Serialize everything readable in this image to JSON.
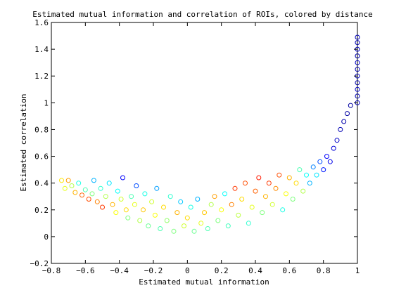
{
  "chart_data": {
    "type": "scatter",
    "title": "Estimated mutual information and correlation of ROIs, colored by distance",
    "xlabel": "Estimated mutual information",
    "ylabel": "Estimated correlation",
    "xlim": [
      -0.8,
      1.0
    ],
    "ylim": [
      -0.2,
      1.6
    ],
    "x_ticks": [
      -0.8,
      -0.6,
      -0.4,
      -0.2,
      0,
      0.2,
      0.4,
      0.6,
      0.8,
      1
    ],
    "x_tick_labels": [
      "−0.8",
      "−0.6",
      "−0.4",
      "−0.2",
      "0",
      "0.2",
      "0.4",
      "0.6",
      "0.8",
      "1"
    ],
    "y_ticks": [
      -0.2,
      0,
      0.2,
      0.4,
      0.6,
      0.8,
      1,
      1.2,
      1.4,
      1.6
    ],
    "y_tick_labels": [
      "−0.2",
      "0",
      "0.2",
      "0.4",
      "0.6",
      "0.8",
      "1",
      "1.2",
      "1.4",
      "1.6"
    ],
    "grid": false,
    "legend": "none",
    "marker": "open-circle",
    "colormap": "jet",
    "colormap_stops": [
      "#00008f",
      "#0000ff",
      "#0080ff",
      "#00ffff",
      "#80ff80",
      "#ffff00",
      "#ff8000",
      "#ff0000",
      "#800000"
    ],
    "points": [
      [
        -0.74,
        0.42,
        0.65
      ],
      [
        -0.72,
        0.36,
        0.6
      ],
      [
        -0.7,
        0.42,
        0.72
      ],
      [
        -0.68,
        0.38,
        0.55
      ],
      [
        -0.66,
        0.33,
        0.7
      ],
      [
        -0.64,
        0.4,
        0.4
      ],
      [
        -0.62,
        0.31,
        0.78
      ],
      [
        -0.6,
        0.35,
        0.45
      ],
      [
        -0.58,
        0.28,
        0.8
      ],
      [
        -0.56,
        0.32,
        0.5
      ],
      [
        -0.55,
        0.42,
        0.3
      ],
      [
        -0.53,
        0.26,
        0.75
      ],
      [
        -0.51,
        0.36,
        0.42
      ],
      [
        -0.5,
        0.22,
        0.82
      ],
      [
        -0.48,
        0.3,
        0.55
      ],
      [
        -0.46,
        0.4,
        0.35
      ],
      [
        -0.44,
        0.24,
        0.7
      ],
      [
        -0.42,
        0.18,
        0.62
      ],
      [
        -0.41,
        0.34,
        0.38
      ],
      [
        -0.39,
        0.28,
        0.58
      ],
      [
        -0.38,
        0.44,
        0.12
      ],
      [
        -0.36,
        0.2,
        0.66
      ],
      [
        -0.35,
        0.14,
        0.5
      ],
      [
        -0.33,
        0.3,
        0.45
      ],
      [
        -0.31,
        0.24,
        0.6
      ],
      [
        -0.3,
        0.38,
        0.2
      ],
      [
        -0.28,
        0.12,
        0.55
      ],
      [
        -0.26,
        0.2,
        0.68
      ],
      [
        -0.25,
        0.32,
        0.4
      ],
      [
        -0.23,
        0.08,
        0.48
      ],
      [
        -0.21,
        0.26,
        0.58
      ],
      [
        -0.19,
        0.16,
        0.62
      ],
      [
        -0.18,
        0.36,
        0.28
      ],
      [
        -0.16,
        0.06,
        0.45
      ],
      [
        -0.14,
        0.22,
        0.66
      ],
      [
        -0.12,
        0.12,
        0.52
      ],
      [
        -0.1,
        0.3,
        0.42
      ],
      [
        -0.08,
        0.04,
        0.5
      ],
      [
        -0.06,
        0.18,
        0.7
      ],
      [
        -0.04,
        0.26,
        0.32
      ],
      [
        -0.02,
        0.08,
        0.58
      ],
      [
        0.0,
        0.14,
        0.66
      ],
      [
        0.02,
        0.22,
        0.4
      ],
      [
        0.04,
        0.04,
        0.48
      ],
      [
        0.06,
        0.28,
        0.3
      ],
      [
        0.08,
        0.1,
        0.6
      ],
      [
        0.1,
        0.18,
        0.68
      ],
      [
        0.12,
        0.06,
        0.45
      ],
      [
        0.14,
        0.24,
        0.55
      ],
      [
        0.16,
        0.3,
        0.72
      ],
      [
        0.18,
        0.12,
        0.5
      ],
      [
        0.2,
        0.2,
        0.62
      ],
      [
        0.22,
        0.32,
        0.38
      ],
      [
        0.24,
        0.08,
        0.44
      ],
      [
        0.26,
        0.24,
        0.75
      ],
      [
        0.28,
        0.36,
        0.82
      ],
      [
        0.3,
        0.16,
        0.56
      ],
      [
        0.32,
        0.28,
        0.66
      ],
      [
        0.34,
        0.4,
        0.8
      ],
      [
        0.36,
        0.1,
        0.42
      ],
      [
        0.38,
        0.22,
        0.6
      ],
      [
        0.4,
        0.34,
        0.78
      ],
      [
        0.42,
        0.44,
        0.85
      ],
      [
        0.44,
        0.18,
        0.5
      ],
      [
        0.46,
        0.3,
        0.7
      ],
      [
        0.48,
        0.4,
        0.82
      ],
      [
        0.5,
        0.24,
        0.58
      ],
      [
        0.52,
        0.36,
        0.74
      ],
      [
        0.54,
        0.46,
        0.8
      ],
      [
        0.56,
        0.2,
        0.4
      ],
      [
        0.58,
        0.32,
        0.62
      ],
      [
        0.6,
        0.44,
        0.7
      ],
      [
        0.62,
        0.28,
        0.5
      ],
      [
        0.64,
        0.4,
        0.66
      ],
      [
        0.66,
        0.5,
        0.45
      ],
      [
        0.68,
        0.34,
        0.55
      ],
      [
        0.7,
        0.46,
        0.38
      ],
      [
        0.72,
        0.4,
        0.3
      ],
      [
        0.74,
        0.52,
        0.25
      ],
      [
        0.76,
        0.46,
        0.35
      ],
      [
        0.78,
        0.56,
        0.2
      ],
      [
        0.8,
        0.5,
        0.15
      ],
      [
        0.82,
        0.6,
        0.12
      ],
      [
        0.84,
        0.56,
        0.1
      ],
      [
        0.86,
        0.66,
        0.08
      ],
      [
        0.88,
        0.72,
        0.06
      ],
      [
        0.9,
        0.8,
        0.04
      ],
      [
        0.92,
        0.86,
        0.03
      ],
      [
        0.94,
        0.92,
        0.02
      ],
      [
        0.96,
        0.98,
        0.02
      ],
      [
        1.0,
        1.0,
        0.05
      ],
      [
        1.0,
        1.05,
        0.04
      ],
      [
        1.0,
        1.1,
        0.06
      ],
      [
        1.0,
        1.15,
        0.03
      ],
      [
        1.0,
        1.2,
        0.05
      ],
      [
        1.0,
        1.25,
        0.04
      ],
      [
        1.0,
        1.3,
        0.06
      ],
      [
        1.0,
        1.35,
        0.03
      ],
      [
        1.0,
        1.4,
        0.05
      ],
      [
        1.0,
        1.45,
        0.04
      ],
      [
        1.0,
        1.49,
        0.05
      ]
    ]
  }
}
